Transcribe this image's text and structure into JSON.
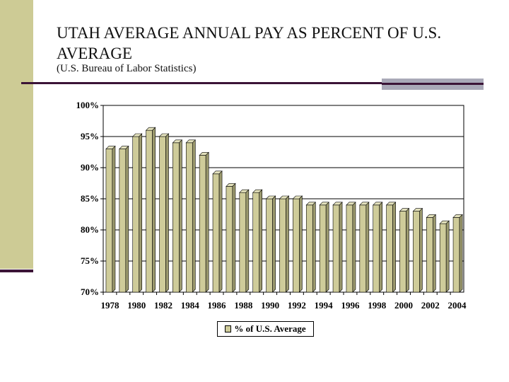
{
  "slide": {
    "title": "UTAH AVERAGE ANNUAL PAY AS PERCENT OF U.S. AVERAGE",
    "subtitle": "(U.S. Bureau of Labor Statistics)"
  },
  "colors": {
    "band": "#cdcb95",
    "accent_line": "#3b1437",
    "bar_fill": "#cfcc9a",
    "bar_top": "#e4e2bd",
    "bar_side": "#9c9a6e"
  },
  "chart_data": {
    "type": "bar",
    "title": "",
    "xlabel": "",
    "ylabel": "",
    "categories": [
      "1978",
      "1979",
      "1980",
      "1981",
      "1982",
      "1983",
      "1984",
      "1985",
      "1986",
      "1987",
      "1988",
      "1989",
      "1990",
      "1991",
      "1992",
      "1993",
      "1994",
      "1995",
      "1996",
      "1997",
      "1998",
      "1999",
      "2000",
      "2001",
      "2002",
      "2003",
      "2004"
    ],
    "x_tick_labels": [
      "1978",
      "1980",
      "1982",
      "1984",
      "1986",
      "1988",
      "1990",
      "1992",
      "1994",
      "1996",
      "1998",
      "2000",
      "2002",
      "2004"
    ],
    "series": [
      {
        "name": "% of U.S. Average",
        "values": [
          93,
          93,
          95,
          96,
          95,
          94,
          94,
          92,
          89,
          87,
          86,
          86,
          85,
          85,
          85,
          84,
          84,
          84,
          84,
          84,
          84,
          84,
          83,
          83,
          82,
          81,
          82
        ]
      }
    ],
    "ylim": [
      70,
      100
    ],
    "y_ticks": [
      70,
      75,
      80,
      85,
      90,
      95,
      100
    ],
    "y_tick_labels": [
      "70%",
      "75%",
      "80%",
      "85%",
      "90%",
      "95%",
      "100%"
    ],
    "grid": true,
    "legend_position": "bottom"
  }
}
